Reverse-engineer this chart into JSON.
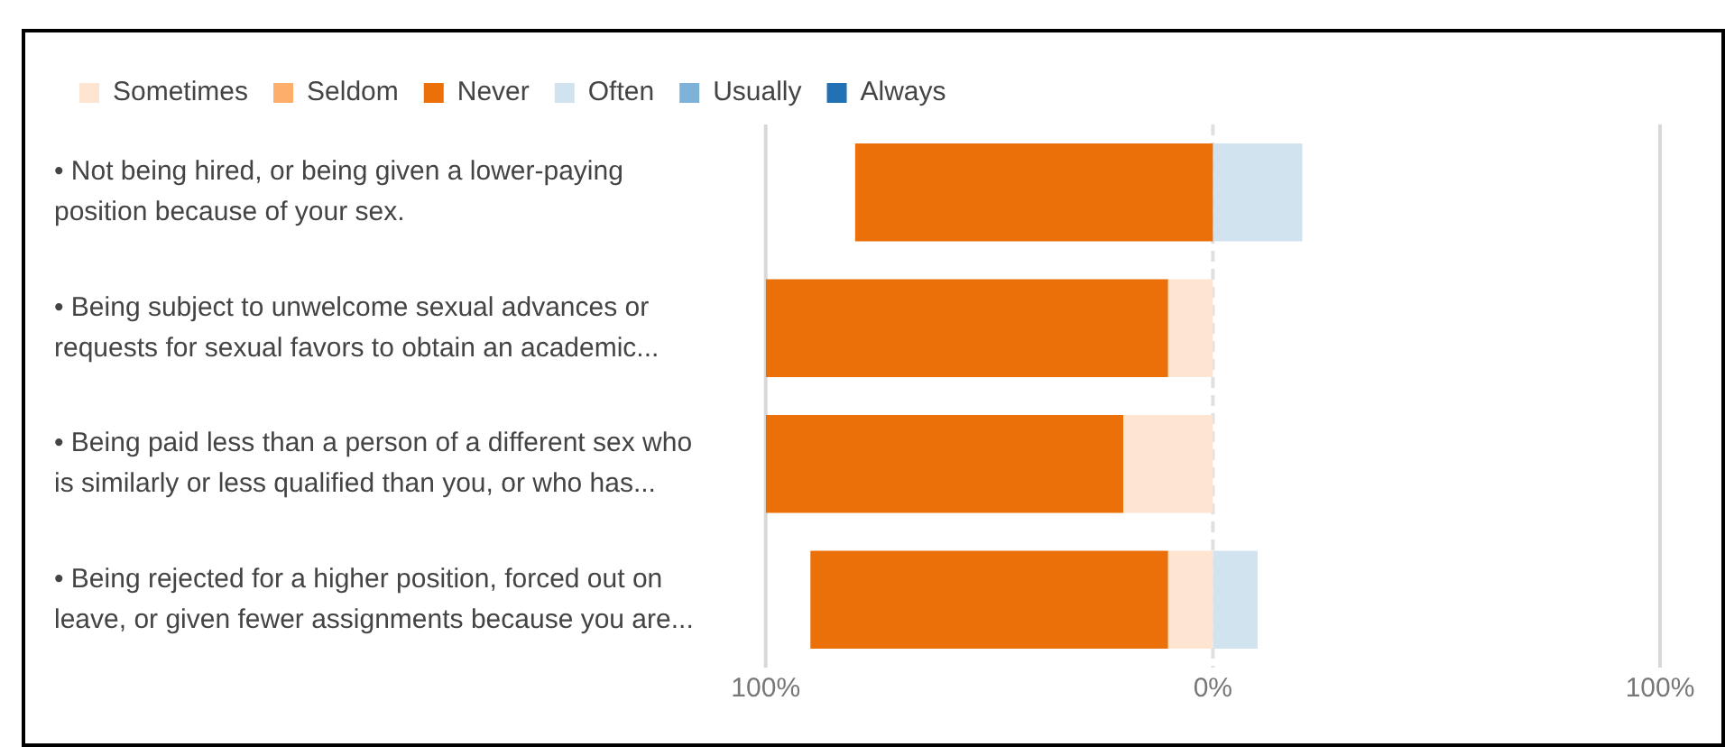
{
  "chart_data": {
    "type": "bar",
    "orientation": "horizontal",
    "stacked": true,
    "categories": [
      "• Not being hired, or being given a lower-paying position because of your sex.",
      "• Being subject to unwelcome sexual advances or requests for sexual favors to obtain an academic...",
      "• Being paid less than a person of a different sex who is similarly or less qualified than you, or who has...",
      "• Being rejected for a higher position, forced out on leave, or given fewer assignments because you are..."
    ],
    "series": [
      {
        "name": "Sometimes",
        "color": "#fee5d2",
        "values": [
          0,
          -10,
          -20,
          -10
        ]
      },
      {
        "name": "Seldom",
        "color": "#fdae6b",
        "values": [
          0,
          0,
          0,
          0
        ]
      },
      {
        "name": "Never",
        "color": "#eb700a",
        "values": [
          -80,
          -90,
          -80,
          -80
        ]
      },
      {
        "name": "Often",
        "color": "#d2e3f0",
        "values": [
          20,
          0,
          0,
          10
        ]
      },
      {
        "name": "Usually",
        "color": "#7fb2d8",
        "values": [
          0,
          0,
          0,
          0
        ]
      },
      {
        "name": "Always",
        "color": "#2271b5",
        "values": [
          0,
          0,
          0,
          0
        ]
      }
    ],
    "xlim": [
      -100,
      100
    ],
    "xticks": [
      {
        "value": -100,
        "label": "100%"
      },
      {
        "value": 0,
        "label": "0%"
      },
      {
        "value": 100,
        "label": "100%"
      }
    ],
    "grid": "x",
    "legend": "top left"
  }
}
